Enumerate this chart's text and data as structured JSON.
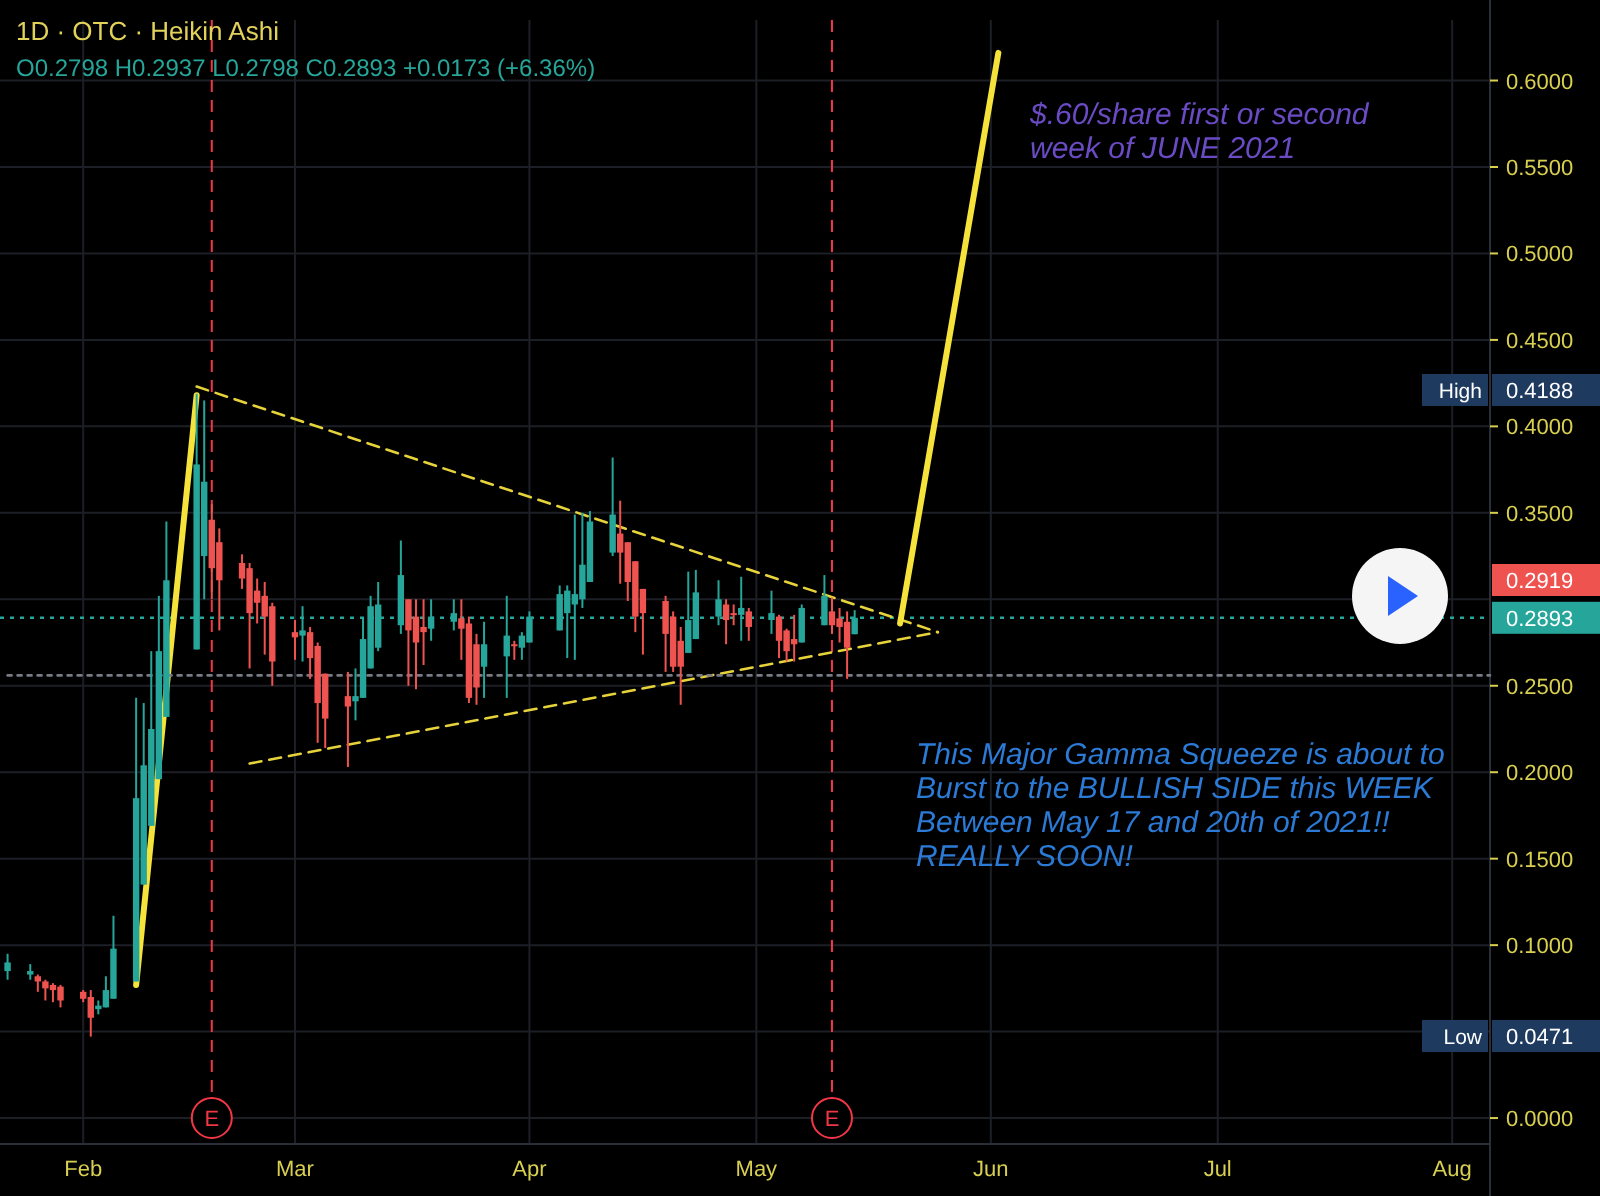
{
  "chart_data": {
    "type": "candlestick",
    "title": "1D · OTC · Heikin Ashi",
    "subtitle": "O0.2798 H0.2937 L0.2798 C0.2893 +0.0173 (+6.36%)",
    "x": [
      "2021-01-22",
      "2021-01-25",
      "2021-01-26",
      "2021-01-27",
      "2021-01-28",
      "2021-01-29",
      "2021-02-01",
      "2021-02-02",
      "2021-02-03",
      "2021-02-04",
      "2021-02-05",
      "2021-02-08",
      "2021-02-09",
      "2021-02-10",
      "2021-02-11",
      "2021-02-12",
      "2021-02-16",
      "2021-02-17",
      "2021-02-18",
      "2021-02-19",
      "2021-02-22",
      "2021-02-23",
      "2021-02-24",
      "2021-02-25",
      "2021-02-26",
      "2021-03-01",
      "2021-03-02",
      "2021-03-03",
      "2021-03-04",
      "2021-03-05",
      "2021-03-08",
      "2021-03-09",
      "2021-03-10",
      "2021-03-11",
      "2021-03-12",
      "2021-03-15",
      "2021-03-16",
      "2021-03-17",
      "2021-03-18",
      "2021-03-19",
      "2021-03-22",
      "2021-03-23",
      "2021-03-24",
      "2021-03-25",
      "2021-03-26",
      "2021-03-29",
      "2021-03-30",
      "2021-03-31",
      "2021-04-01",
      "2021-04-05",
      "2021-04-06",
      "2021-04-07",
      "2021-04-08",
      "2021-04-09",
      "2021-04-12",
      "2021-04-13",
      "2021-04-14",
      "2021-04-15",
      "2021-04-16",
      "2021-04-19",
      "2021-04-20",
      "2021-04-21",
      "2021-04-22",
      "2021-04-23",
      "2021-04-26",
      "2021-04-27",
      "2021-04-28",
      "2021-04-29",
      "2021-04-30",
      "2021-05-03",
      "2021-05-04",
      "2021-05-05",
      "2021-05-06",
      "2021-05-07",
      "2021-05-10",
      "2021-05-11",
      "2021-05-12",
      "2021-05-13",
      "2021-05-14"
    ],
    "ohlc": [
      [
        0.085,
        0.095,
        0.08,
        0.09
      ],
      [
        0.083,
        0.089,
        0.08,
        0.085
      ],
      [
        0.082,
        0.083,
        0.073,
        0.079
      ],
      [
        0.079,
        0.08,
        0.068,
        0.075
      ],
      [
        0.077,
        0.078,
        0.067,
        0.074
      ],
      [
        0.076,
        0.077,
        0.064,
        0.068
      ],
      [
        0.073,
        0.074,
        0.067,
        0.069
      ],
      [
        0.07,
        0.074,
        0.0471,
        0.058
      ],
      [
        0.063,
        0.068,
        0.06,
        0.065
      ],
      [
        0.064,
        0.082,
        0.064,
        0.074
      ],
      [
        0.069,
        0.117,
        0.069,
        0.098
      ],
      [
        0.079,
        0.243,
        0.079,
        0.185
      ],
      [
        0.135,
        0.24,
        0.135,
        0.204
      ],
      [
        0.169,
        0.27,
        0.169,
        0.225
      ],
      [
        0.196,
        0.302,
        0.196,
        0.27
      ],
      [
        0.232,
        0.345,
        0.232,
        0.311
      ],
      [
        0.271,
        0.4188,
        0.271,
        0.378
      ],
      [
        0.325,
        0.415,
        0.3,
        0.368
      ],
      [
        0.346,
        0.355,
        0.3,
        0.318
      ],
      [
        0.333,
        0.341,
        0.282,
        0.311
      ],
      [
        0.321,
        0.326,
        0.306,
        0.312
      ],
      [
        0.318,
        0.321,
        0.26,
        0.292
      ],
      [
        0.305,
        0.312,
        0.286,
        0.298
      ],
      [
        0.302,
        0.31,
        0.268,
        0.29
      ],
      [
        0.296,
        0.298,
        0.25,
        0.264
      ],
      [
        0.281,
        0.288,
        0.265,
        0.278
      ],
      [
        0.279,
        0.296,
        0.264,
        0.282
      ],
      [
        0.281,
        0.284,
        0.254,
        0.266
      ],
      [
        0.273,
        0.275,
        0.217,
        0.24
      ],
      [
        0.257,
        0.257,
        0.214,
        0.231
      ],
      [
        0.244,
        0.258,
        0.203,
        0.238
      ],
      [
        0.241,
        0.26,
        0.23,
        0.244
      ],
      [
        0.243,
        0.289,
        0.243,
        0.277
      ],
      [
        0.26,
        0.302,
        0.26,
        0.296
      ],
      [
        0.272,
        0.31,
        0.27,
        0.297
      ],
      [
        0.285,
        0.334,
        0.28,
        0.314
      ],
      [
        0.3,
        0.3,
        0.25,
        0.282
      ],
      [
        0.29,
        0.3,
        0.248,
        0.275
      ],
      [
        0.284,
        0.3,
        0.262,
        0.281
      ],
      [
        0.283,
        0.3,
        0.276,
        0.29
      ],
      [
        0.287,
        0.3,
        0.282,
        0.292
      ],
      [
        0.289,
        0.3,
        0.265,
        0.283
      ],
      [
        0.286,
        0.29,
        0.24,
        0.243
      ],
      [
        0.274,
        0.28,
        0.239,
        0.249
      ],
      [
        0.261,
        0.287,
        0.243,
        0.274
      ],
      [
        0.267,
        0.302,
        0.243,
        0.279
      ],
      [
        0.274,
        0.276,
        0.265,
        0.273
      ],
      [
        0.272,
        0.281,
        0.265,
        0.279
      ],
      [
        0.275,
        0.293,
        0.275,
        0.29
      ],
      [
        0.282,
        0.308,
        0.282,
        0.303
      ],
      [
        0.292,
        0.308,
        0.266,
        0.305
      ],
      [
        0.297,
        0.349,
        0.265,
        0.303
      ],
      [
        0.3,
        0.35,
        0.295,
        0.32
      ],
      [
        0.31,
        0.351,
        0.31,
        0.345
      ],
      [
        0.327,
        0.382,
        0.325,
        0.349
      ],
      [
        0.338,
        0.357,
        0.309,
        0.327
      ],
      [
        0.333,
        0.333,
        0.299,
        0.31
      ],
      [
        0.322,
        0.322,
        0.281,
        0.29
      ],
      [
        0.306,
        0.306,
        0.268,
        0.292
      ],
      [
        0.299,
        0.302,
        0.258,
        0.28
      ],
      [
        0.29,
        0.293,
        0.258,
        0.261
      ],
      [
        0.276,
        0.284,
        0.239,
        0.261
      ],
      [
        0.269,
        0.316,
        0.269,
        0.288
      ],
      [
        0.277,
        0.317,
        0.277,
        0.304
      ],
      [
        0.29,
        0.311,
        0.285,
        0.3
      ],
      [
        0.297,
        0.3,
        0.274,
        0.288
      ],
      [
        0.292,
        0.297,
        0.285,
        0.291
      ],
      [
        0.291,
        0.313,
        0.276,
        0.295
      ],
      [
        0.293,
        0.295,
        0.276,
        0.284
      ],
      [
        0.288,
        0.305,
        0.28,
        0.292
      ],
      [
        0.29,
        0.291,
        0.266,
        0.276
      ],
      [
        0.282,
        0.283,
        0.264,
        0.27
      ],
      [
        0.277,
        0.291,
        0.264,
        0.274
      ],
      [
        0.275,
        0.297,
        0.275,
        0.295
      ],
      [
        0.285,
        0.314,
        0.285,
        0.302
      ],
      [
        0.293,
        0.301,
        0.28,
        0.285
      ],
      [
        0.289,
        0.295,
        0.275,
        0.284
      ],
      [
        0.287,
        0.293,
        0.254,
        0.272
      ],
      [
        0.2798,
        0.2937,
        0.2798,
        0.2893
      ]
    ],
    "colors": [
      "#26a69a",
      "#26a69a",
      "#ef5350",
      "#ef5350",
      "#ef5350",
      "#ef5350",
      "#ef5350",
      "#ef5350",
      "#26a69a",
      "#26a69a",
      "#26a69a",
      "#26a69a",
      "#26a69a",
      "#26a69a",
      "#26a69a",
      "#26a69a",
      "#26a69a",
      "#26a69a",
      "#ef5350",
      "#ef5350",
      "#ef5350",
      "#ef5350",
      "#ef5350",
      "#ef5350",
      "#ef5350",
      "#ef5350",
      "#26a69a",
      "#ef5350",
      "#ef5350",
      "#ef5350",
      "#ef5350",
      "#26a69a",
      "#26a69a",
      "#26a69a",
      "#26a69a",
      "#26a69a",
      "#ef5350",
      "#ef5350",
      "#ef5350",
      "#26a69a",
      "#26a69a",
      "#ef5350",
      "#ef5350",
      "#ef5350",
      "#26a69a",
      "#26a69a",
      "#ef5350",
      "#26a69a",
      "#26a69a",
      "#26a69a",
      "#26a69a",
      "#26a69a",
      "#26a69a",
      "#26a69a",
      "#26a69a",
      "#ef5350",
      "#ef5350",
      "#ef5350",
      "#ef5350",
      "#ef5350",
      "#ef5350",
      "#ef5350",
      "#26a69a",
      "#26a69a",
      "#26a69a",
      "#ef5350",
      "#ef5350",
      "#26a69a",
      "#ef5350",
      "#26a69a",
      "#ef5350",
      "#ef5350",
      "#ef5350",
      "#26a69a",
      "#26a69a",
      "#ef5350",
      "#ef5350",
      "#ef5350",
      "#26a69a"
    ],
    "series": [
      {
        "type": "line",
        "x": [
          "2021-02-16",
          "2021-05-25"
        ],
        "values": [
          0.423,
          0.281
        ],
        "color": "#e6d23a",
        "line_style": "dashed"
      },
      {
        "type": "line",
        "x": [
          "2021-02-23",
          "2021-05-25"
        ],
        "values": [
          0.205,
          0.281
        ],
        "color": "#e6d23a",
        "line_style": "dashed"
      },
      {
        "type": "line",
        "x": [
          "2021-02-08",
          "2021-02-16"
        ],
        "values": [
          0.077,
          0.418
        ],
        "color": "#f5e33b",
        "line_style": "solid"
      },
      {
        "type": "line",
        "x": [
          "2021-05-20",
          "2021-06-02"
        ],
        "values": [
          0.286,
          0.616
        ],
        "color": "#f5e33b",
        "line_style": "solid"
      },
      {
        "type": "line",
        "x": [
          "2021-01-22",
          "2021-08-06"
        ],
        "values": [
          0.256,
          0.256
        ],
        "color": "#787b86",
        "line_style": "dotted"
      }
    ],
    "xlim": [
      "2021-01-21",
      "2021-08-06"
    ],
    "xticks": [
      {
        "value": "2021-02-01",
        "label": "Feb"
      },
      {
        "value": "2021-03-01",
        "label": "Mar"
      },
      {
        "value": "2021-04-01",
        "label": "Apr"
      },
      {
        "value": "2021-05-01",
        "label": "May"
      },
      {
        "value": "2021-06-01",
        "label": "Jun"
      },
      {
        "value": "2021-07-01",
        "label": "Jul"
      },
      {
        "value": "2021-08-01",
        "label": "Aug"
      }
    ],
    "ylim": [
      -0.015,
      0.635
    ],
    "yticks": [
      {
        "value": 0,
        "label": "0.0000"
      },
      {
        "value": 0.05,
        "label": null
      },
      {
        "value": 0.1,
        "label": "0.1000"
      },
      {
        "value": 0.15,
        "label": "0.1500"
      },
      {
        "value": 0.2,
        "label": "0.2000"
      },
      {
        "value": 0.25,
        "label": "0.2500"
      },
      {
        "value": 0.3,
        "label": null
      },
      {
        "value": 0.35,
        "label": "0.3500"
      },
      {
        "value": 0.4,
        "label": "0.4000"
      },
      {
        "value": 0.45,
        "label": "0.4500"
      },
      {
        "value": 0.5,
        "label": "0.5000"
      },
      {
        "value": 0.55,
        "label": "0.5500"
      },
      {
        "value": 0.6,
        "label": "0.6000"
      }
    ],
    "grid": true,
    "ref_lines": [
      {
        "axis": "x",
        "value": "2021-02-18",
        "label": "E",
        "color": "#f23645",
        "line_style": "dashed"
      },
      {
        "axis": "x",
        "value": "2021-05-11",
        "label": "E",
        "color": "#f23645",
        "line_style": "dashed"
      },
      {
        "axis": "y",
        "value": 0.2893,
        "label": "0.2893",
        "color": "#26a69a",
        "line_style": "dotted"
      }
    ],
    "annotations": [
      "$.60/share first or second week of JUNE 2021",
      "This Major Gamma Squeeze is about to Burst to the BULLISH SIDE this WEEK Between May 17 and 20th of 2021!! REALLY SOON!",
      "High",
      "0.4188",
      "Low",
      "0.0471",
      "0.2919"
    ]
  }
}
